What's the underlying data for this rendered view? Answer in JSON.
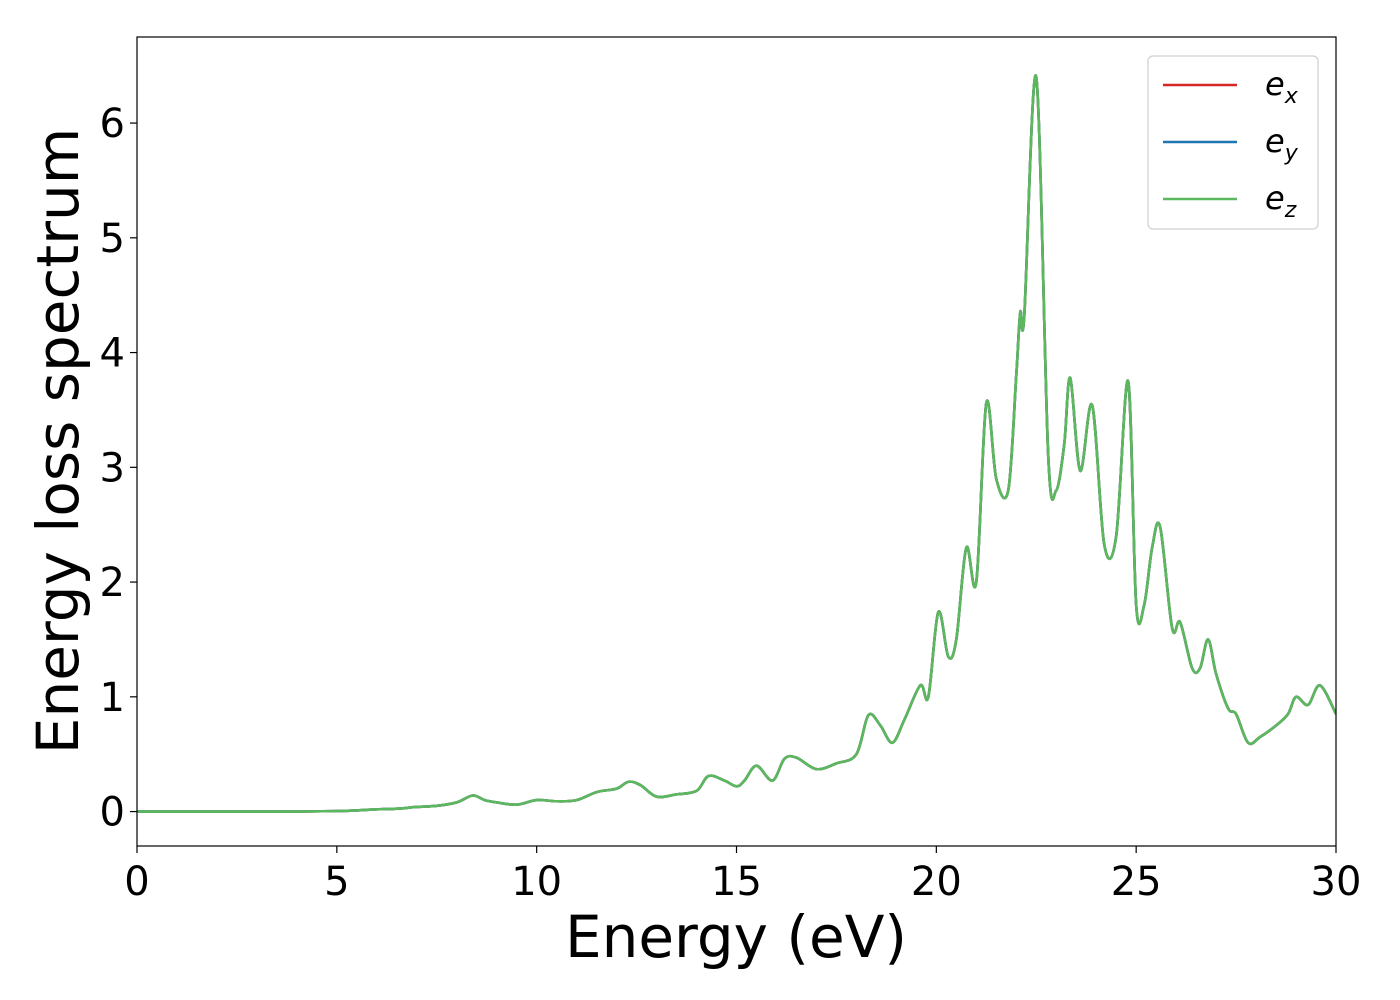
{
  "chart_data": {
    "type": "line",
    "xlabel": "Energy (eV)",
    "ylabel": "Energy loss spectrum",
    "xlim": [
      0,
      30
    ],
    "ylim": [
      -0.3,
      6.75
    ],
    "xticks": [
      0,
      5,
      10,
      15,
      20,
      25,
      30
    ],
    "yticks": [
      0,
      1,
      2,
      3,
      4,
      5,
      6
    ],
    "grid": false,
    "legend": {
      "placement": "top-right"
    },
    "series": [
      {
        "name": "e_x",
        "label_base": "e",
        "label_sub": "x",
        "color": "#d62728",
        "x": [
          0,
          2,
          4,
          5,
          5.5,
          6,
          6.5,
          7,
          7.5,
          8,
          8.4,
          8.7,
          9,
          9.5,
          10,
          10.5,
          11,
          11.5,
          12,
          12.3,
          12.6,
          13,
          13.5,
          14,
          14.3,
          14.7,
          15,
          15.2,
          15.5,
          15.9,
          16.2,
          16.5,
          17,
          17.5,
          18,
          18.3,
          18.6,
          18.9,
          19.2,
          19.6,
          19.8,
          20.05,
          20.3,
          20.5,
          20.75,
          21,
          21.25,
          21.5,
          21.8,
          22,
          22.1,
          22.2,
          22.5,
          22.8,
          23,
          23.2,
          23.35,
          23.6,
          23.9,
          24.2,
          24.5,
          24.8,
          25,
          25.2,
          25.4,
          25.6,
          25.9,
          26.1,
          26.4,
          26.6,
          26.8,
          27,
          27.3,
          27.5,
          27.8,
          28.1,
          28.5,
          28.8,
          29,
          29.3,
          29.6,
          30
        ],
        "values": [
          0,
          0,
          0,
          0.005,
          0.01,
          0.02,
          0.025,
          0.04,
          0.05,
          0.08,
          0.14,
          0.1,
          0.08,
          0.06,
          0.1,
          0.09,
          0.1,
          0.17,
          0.2,
          0.26,
          0.23,
          0.13,
          0.15,
          0.18,
          0.31,
          0.27,
          0.22,
          0.27,
          0.4,
          0.27,
          0.46,
          0.47,
          0.37,
          0.42,
          0.5,
          0.84,
          0.75,
          0.6,
          0.8,
          1.1,
          1.0,
          1.74,
          1.35,
          1.5,
          2.3,
          2.0,
          3.56,
          2.9,
          2.8,
          3.8,
          4.35,
          4.32,
          6.4,
          3.1,
          2.8,
          3.2,
          3.78,
          2.97,
          3.54,
          2.33,
          2.4,
          3.75,
          1.8,
          1.8,
          2.3,
          2.48,
          1.6,
          1.65,
          1.25,
          1.25,
          1.5,
          1.2,
          0.9,
          0.85,
          0.6,
          0.65,
          0.75,
          0.85,
          1.0,
          0.93,
          1.1,
          0.85
        ]
      },
      {
        "name": "e_y",
        "label_base": "e",
        "label_sub": "y",
        "color": "#1f77b4",
        "x": [
          0,
          2,
          4,
          5,
          5.5,
          6,
          6.5,
          7,
          7.5,
          8,
          8.4,
          8.7,
          9,
          9.5,
          10,
          10.5,
          11,
          11.5,
          12,
          12.3,
          12.6,
          13,
          13.5,
          14,
          14.3,
          14.7,
          15,
          15.2,
          15.5,
          15.9,
          16.2,
          16.5,
          17,
          17.5,
          18,
          18.3,
          18.6,
          18.9,
          19.2,
          19.6,
          19.8,
          20.05,
          20.3,
          20.5,
          20.75,
          21,
          21.25,
          21.5,
          21.8,
          22,
          22.1,
          22.2,
          22.5,
          22.8,
          23,
          23.2,
          23.35,
          23.6,
          23.9,
          24.2,
          24.5,
          24.8,
          25,
          25.2,
          25.4,
          25.6,
          25.9,
          26.1,
          26.4,
          26.6,
          26.8,
          27,
          27.3,
          27.5,
          27.8,
          28.1,
          28.5,
          28.8,
          29,
          29.3,
          29.6,
          30
        ],
        "values": [
          0,
          0,
          0,
          0.005,
          0.01,
          0.02,
          0.025,
          0.04,
          0.05,
          0.08,
          0.14,
          0.1,
          0.08,
          0.06,
          0.1,
          0.09,
          0.1,
          0.17,
          0.2,
          0.26,
          0.23,
          0.13,
          0.15,
          0.18,
          0.31,
          0.27,
          0.22,
          0.27,
          0.4,
          0.27,
          0.46,
          0.47,
          0.37,
          0.42,
          0.5,
          0.84,
          0.75,
          0.6,
          0.8,
          1.1,
          1.0,
          1.74,
          1.35,
          1.5,
          2.3,
          2.0,
          3.56,
          2.9,
          2.8,
          3.8,
          4.35,
          4.32,
          6.4,
          3.1,
          2.8,
          3.2,
          3.78,
          2.97,
          3.54,
          2.33,
          2.4,
          3.75,
          1.8,
          1.8,
          2.3,
          2.48,
          1.6,
          1.65,
          1.25,
          1.25,
          1.5,
          1.2,
          0.9,
          0.85,
          0.6,
          0.65,
          0.75,
          0.85,
          1.0,
          0.93,
          1.1,
          0.85
        ]
      },
      {
        "name": "e_z",
        "label_base": "e",
        "label_sub": "z",
        "color": "#5cb85c",
        "x": [
          0,
          2,
          4,
          5,
          5.5,
          6,
          6.5,
          7,
          7.5,
          8,
          8.4,
          8.7,
          9,
          9.5,
          10,
          10.5,
          11,
          11.5,
          12,
          12.3,
          12.6,
          13,
          13.5,
          14,
          14.3,
          14.7,
          15,
          15.2,
          15.5,
          15.9,
          16.2,
          16.5,
          17,
          17.5,
          18,
          18.3,
          18.6,
          18.9,
          19.2,
          19.6,
          19.8,
          20.05,
          20.3,
          20.5,
          20.75,
          21,
          21.25,
          21.5,
          21.8,
          22,
          22.1,
          22.2,
          22.5,
          22.8,
          23,
          23.2,
          23.35,
          23.6,
          23.9,
          24.2,
          24.5,
          24.8,
          25,
          25.2,
          25.4,
          25.6,
          25.9,
          26.1,
          26.4,
          26.6,
          26.8,
          27,
          27.3,
          27.5,
          27.8,
          28.1,
          28.5,
          28.8,
          29,
          29.3,
          29.6,
          30
        ],
        "values": [
          0,
          0,
          0,
          0.005,
          0.01,
          0.02,
          0.025,
          0.04,
          0.05,
          0.08,
          0.14,
          0.1,
          0.08,
          0.06,
          0.1,
          0.09,
          0.1,
          0.17,
          0.2,
          0.26,
          0.23,
          0.13,
          0.15,
          0.18,
          0.31,
          0.27,
          0.22,
          0.27,
          0.4,
          0.27,
          0.46,
          0.47,
          0.37,
          0.42,
          0.5,
          0.84,
          0.75,
          0.6,
          0.8,
          1.1,
          1.0,
          1.74,
          1.35,
          1.5,
          2.3,
          2.0,
          3.56,
          2.9,
          2.8,
          3.8,
          4.35,
          4.32,
          6.4,
          3.1,
          2.8,
          3.2,
          3.78,
          2.97,
          3.54,
          2.33,
          2.4,
          3.75,
          1.8,
          1.8,
          2.3,
          2.48,
          1.6,
          1.65,
          1.25,
          1.25,
          1.5,
          1.2,
          0.9,
          0.85,
          0.6,
          0.65,
          0.75,
          0.85,
          1.0,
          0.93,
          1.1,
          0.85
        ]
      }
    ]
  }
}
